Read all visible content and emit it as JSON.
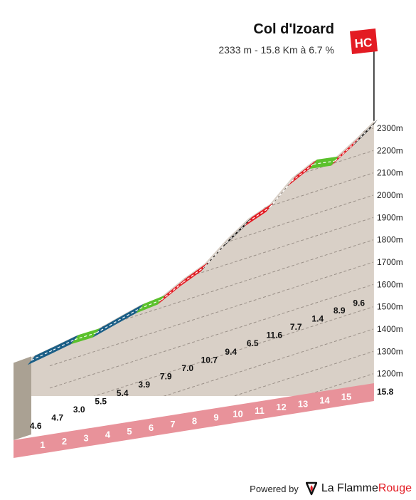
{
  "header": {
    "title": "Col d'Izoard",
    "subtitle": "2333 m - 15.8 Km à 6.7 %",
    "category_badge": "HC"
  },
  "footer": {
    "powered_by": "Powered by",
    "brand_primary": "La Flamme",
    "brand_accent": "Rouge",
    "logo_icon": "flame-logo-icon"
  },
  "colors": {
    "ground": "#d9d0c7",
    "base_side": "#aaa193",
    "km_band": "#e8929a",
    "km_band_side": "#de7f88",
    "km_label": "#ffffff",
    "gradient_label": "#111111",
    "grid": "#9a9088",
    "road_dash": "#ffffff",
    "badge": "#e31b23",
    "brand": "#e31b23"
  },
  "chart_data": {
    "type": "area",
    "title": "Col d'Izoard",
    "subtitle": "2333 m - 15.8 Km à 6.7 %",
    "x_unit": "km",
    "y_unit": "m",
    "ylim": [
      1100,
      2350
    ],
    "xlim": [
      0,
      15.8
    ],
    "y_ticks": [
      1200,
      1300,
      1400,
      1500,
      1600,
      1700,
      1800,
      1900,
      2000,
      2100,
      2200,
      2300
    ],
    "y_tick_labels": [
      "1200m",
      "1300m",
      "1400m",
      "1500m",
      "1600m",
      "1700m",
      "1800m",
      "1900m",
      "2000m",
      "2100m",
      "2200m",
      "2300m"
    ],
    "km_labels": [
      "1",
      "2",
      "3",
      "4",
      "5",
      "6",
      "7",
      "8",
      "9",
      "10",
      "11",
      "12",
      "13",
      "14",
      "15"
    ],
    "end_distance_label": "15.8",
    "grid": true,
    "segments": [
      {
        "km_start": 0,
        "km_end": 1,
        "gradient": 4.6,
        "gradient_label": "4.6",
        "color": "#1a5e86"
      },
      {
        "km_start": 1,
        "km_end": 2,
        "gradient": 4.7,
        "gradient_label": "4.7",
        "color": "#1a5e86"
      },
      {
        "km_start": 2,
        "km_end": 3,
        "gradient": 3.0,
        "gradient_label": "3.0",
        "color": "#5bc12c"
      },
      {
        "km_start": 3,
        "km_end": 4,
        "gradient": 5.5,
        "gradient_label": "5.5",
        "color": "#1a5e86"
      },
      {
        "km_start": 4,
        "km_end": 5,
        "gradient": 5.4,
        "gradient_label": "5.4",
        "color": "#1a5e86"
      },
      {
        "km_start": 5,
        "km_end": 6,
        "gradient": 3.9,
        "gradient_label": "3.9",
        "color": "#5bc12c"
      },
      {
        "km_start": 6,
        "km_end": 7,
        "gradient": 7.9,
        "gradient_label": "7.9",
        "color": "#e31b23"
      },
      {
        "km_start": 7,
        "km_end": 8,
        "gradient": 7.0,
        "gradient_label": "7.0",
        "color": "#e31b23"
      },
      {
        "km_start": 8,
        "km_end": 9,
        "gradient": 10.7,
        "gradient_label": "10.7",
        "color": "#111111"
      },
      {
        "km_start": 9,
        "km_end": 10,
        "gradient": 9.4,
        "gradient_label": "9.4",
        "color": "#111111"
      },
      {
        "km_start": 10,
        "km_end": 11,
        "gradient": 6.5,
        "gradient_label": "6.5",
        "color": "#e31b23"
      },
      {
        "km_start": 11,
        "km_end": 12,
        "gradient": 11.6,
        "gradient_label": "11.6",
        "color": "#111111"
      },
      {
        "km_start": 12,
        "km_end": 13,
        "gradient": 7.7,
        "gradient_label": "7.7",
        "color": "#e31b23"
      },
      {
        "km_start": 13,
        "km_end": 14,
        "gradient": 1.4,
        "gradient_label": "1.4",
        "color": "#5bc12c"
      },
      {
        "km_start": 14,
        "km_end": 15,
        "gradient": 8.9,
        "gradient_label": "8.9",
        "color": "#e31b23"
      },
      {
        "km_start": 15,
        "km_end": 15.8,
        "gradient": 9.6,
        "gradient_label": "9.6",
        "color": "#111111"
      }
    ]
  }
}
